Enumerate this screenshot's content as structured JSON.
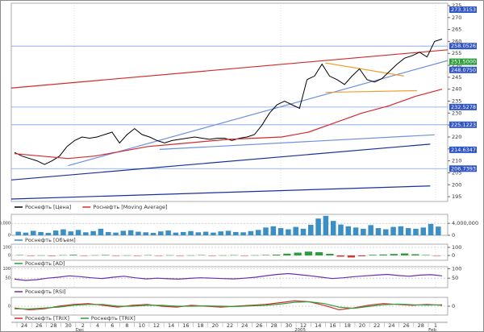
{
  "x_axis": {
    "labels": [
      "24",
      "26",
      "28",
      "30",
      "2",
      "4",
      "6",
      "8",
      "10",
      "12",
      "14",
      "16",
      "18",
      "20",
      "22",
      "24",
      "26",
      "28",
      "30",
      "12",
      "14",
      "16",
      "18",
      "20",
      "22",
      "24",
      "26",
      "28",
      "1"
    ],
    "months": [
      "Dec",
      "2005",
      "Feb"
    ]
  },
  "chart_data": [
    {
      "type": "line",
      "ylim": [
        193,
        276
      ],
      "yticks": [
        195,
        200,
        205,
        210,
        215,
        220,
        225,
        230,
        235,
        240,
        245,
        250,
        255,
        260,
        265,
        270,
        275
      ],
      "grid": false,
      "series": [
        {
          "name": "Роснефть [Цена]",
          "color": "#000000",
          "values": [
            213.5,
            212,
            211,
            210,
            208.5,
            210,
            212,
            216,
            218.5,
            220,
            219.5,
            220,
            221,
            222,
            217.5,
            221,
            223.5,
            221,
            220,
            218.5,
            217.5,
            218.5,
            219,
            219.5,
            220,
            219.5,
            219,
            219.5,
            219.5,
            218.5,
            219.5,
            220,
            221,
            225,
            230,
            233.5,
            235,
            233.5,
            232,
            244,
            245.5,
            250.5,
            245.5,
            244,
            242,
            245.5,
            248.5,
            244,
            243,
            244.5,
            247.5,
            250.5,
            253,
            254,
            255.5,
            253.5,
            260,
            261
          ]
        },
        {
          "name": "Роснефть [Moving Average]",
          "color": "#d42a2a",
          "values": [
            213,
            212,
            211,
            212,
            214,
            216,
            217,
            218,
            219,
            219.5,
            220,
            222,
            226,
            230,
            233,
            237,
            240
          ]
        }
      ],
      "levels": [
        {
          "value": 273.3153,
          "label": "273.3153",
          "color": "#2f55c8",
          "hline": false
        },
        {
          "value": 258.0526,
          "label": "258.0526",
          "color": "#2f55c8",
          "hline": true
        },
        {
          "value": 251.5,
          "label": "251.5000",
          "color": "#2e9e3a",
          "hline": false
        },
        {
          "value": 248.075,
          "label": "248.0750",
          "color": "#2f55c8",
          "hline": false
        },
        {
          "value": 232.5278,
          "label": "232.5278",
          "color": "#2f55c8",
          "hline": true
        },
        {
          "value": 225.1223,
          "label": "225.1223",
          "color": "#2f55c8",
          "hline": true
        },
        {
          "value": 214.6347,
          "label": "214.6347",
          "color": "#2f55c8",
          "hline": false
        },
        {
          "value": 206.7393,
          "label": "206.7393",
          "color": "#2f55c8",
          "hline": true
        }
      ],
      "trendlines": [
        {
          "color": "#d42a2a",
          "values": [
            240.5,
            256.5
          ]
        },
        {
          "color": "#1a2f9e",
          "values": [
            202,
            217
          ]
        },
        {
          "color": "#1a2f9e",
          "values": [
            194,
            199.5
          ]
        },
        {
          "color": "#6f8fe0",
          "values": [
            208,
            252
          ]
        },
        {
          "color": "#6f8fe0",
          "values": [
            214.8,
            220.9
          ]
        },
        {
          "color": "#f0a030",
          "values": [
            251,
            245.5
          ]
        },
        {
          "color": "#f0a030",
          "values": [
            238.7,
            239.4
          ]
        }
      ]
    },
    {
      "type": "bar",
      "ylim": [
        0,
        7000000
      ],
      "yticks": [
        0,
        {
          "value": 4000000,
          "label": "4,000,000"
        }
      ],
      "grid": true,
      "series": [
        {
          "name": "Роснефть [Объем]",
          "color": "#3b8fc4",
          "values": [
            1200000,
            900000,
            1500000,
            1100000,
            800000,
            1600000,
            2000000,
            1300000,
            1800000,
            1000000,
            1400000,
            2200000,
            1100000,
            900000,
            1500000,
            1700000,
            1200000,
            1000000,
            800000,
            1300000,
            1600000,
            900000,
            1100000,
            1400000,
            1000000,
            1200000,
            900000,
            1300000,
            1500000,
            1100000,
            1000000,
            1400000,
            1800000,
            2600000,
            3000000,
            2400000,
            2000000,
            2800000,
            2200000,
            3500000,
            5600000,
            6500000,
            4800000,
            3600000,
            3000000,
            2600000,
            2200000,
            3400000,
            2400000,
            2000000,
            2800000,
            3000000,
            2400000,
            2200000,
            2600000,
            3800000,
            2900000
          ]
        }
      ]
    },
    {
      "type": "bar",
      "ylim": [
        -60,
        140
      ],
      "yticks": [
        0,
        100
      ],
      "grid": true,
      "series": [
        {
          "name": "Роснефть [AD]",
          "color": "#2e9e3a",
          "negative_color": "#e0302c",
          "values": [
            5,
            -3,
            2,
            -6,
            4,
            8,
            -4,
            3,
            6,
            -5,
            2,
            -3,
            4,
            -2,
            3,
            -4,
            2,
            5,
            -3,
            2,
            4,
            -2,
            3,
            6,
            10,
            22,
            35,
            48,
            40,
            20,
            -15,
            -25,
            -10,
            8,
            12,
            18,
            25,
            15,
            6,
            -4
          ]
        }
      ]
    },
    {
      "type": "line",
      "ylim": [
        0,
        110
      ],
      "yticks": [
        50,
        100
      ],
      "grid": true,
      "series": [
        {
          "name": "Роснефть [RSI]",
          "color": "#6a2fa8",
          "values": [
            45,
            38,
            42,
            50,
            55,
            62,
            58,
            52,
            48,
            55,
            60,
            52,
            46,
            50,
            47,
            45,
            49,
            52,
            50,
            48,
            46,
            50,
            55,
            63,
            70,
            74,
            68,
            62,
            55,
            48,
            52,
            58,
            62,
            66,
            70,
            64,
            60,
            66,
            68,
            62
          ]
        }
      ]
    },
    {
      "type": "line",
      "ylim": [
        -0.5,
        0.5
      ],
      "yticks": [
        0
      ],
      "grid": true,
      "series": [
        {
          "name": "Роснефть [TRIX]",
          "color": "#d42a2a",
          "values": [
            -0.1,
            -0.2,
            -0.15,
            0,
            0.1,
            0.15,
            0.05,
            -0.05,
            0.05,
            0.1,
            0,
            -0.05,
            0.05,
            0,
            -0.05,
            0,
            0.05,
            0.1,
            0.2,
            0.3,
            0.25,
            0.05,
            -0.2,
            -0.1,
            0.05,
            0.15,
            0.1,
            0.05,
            0.1,
            0.05
          ]
        },
        {
          "name": "Роснефть [TRIX]",
          "color": "#2e9e3a",
          "values": [
            -0.15,
            -0.15,
            -0.1,
            -0.05,
            0.05,
            0.1,
            0.1,
            0,
            0,
            0.05,
            0.05,
            0,
            0,
            0.02,
            0,
            -0.02,
            0.02,
            0.05,
            0.12,
            0.22,
            0.25,
            0.15,
            -0.05,
            -0.12,
            -0.02,
            0.08,
            0.12,
            0.08,
            0.06,
            0.08
          ]
        }
      ]
    }
  ]
}
